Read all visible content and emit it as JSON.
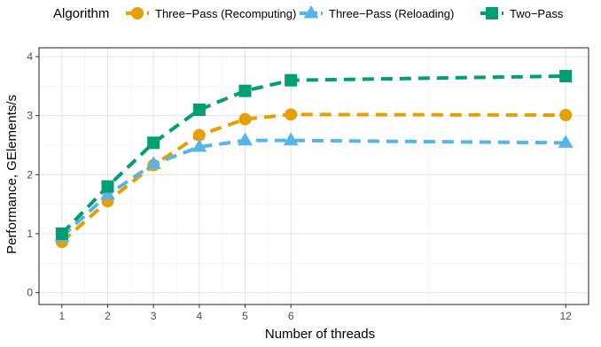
{
  "chart_data": {
    "type": "line",
    "xlabel": "Number of threads",
    "ylabel": "Performance, GElements/s",
    "legend_title": "Algorithm",
    "legend_position": "top",
    "grid": true,
    "x": [
      1,
      2,
      3,
      4,
      5,
      6,
      12
    ],
    "x_ticks": [
      "1",
      "2",
      "3",
      "4",
      "5",
      "6",
      "12"
    ],
    "y_ticks": [
      "0",
      "1",
      "2",
      "3",
      "4"
    ],
    "xlim": [
      0.5,
      12.5
    ],
    "ylim": [
      -0.2,
      4.15
    ],
    "series": [
      {
        "name": "Three−Pass (Recomputing)",
        "color": "#E69F00",
        "marker": "circle",
        "values": [
          0.86,
          1.55,
          2.16,
          2.67,
          2.94,
          3.02,
          3.01
        ]
      },
      {
        "name": "Three−Pass (Reloading)",
        "color": "#56B4E9",
        "marker": "triangle",
        "values": [
          0.95,
          1.66,
          2.18,
          2.47,
          2.58,
          2.58,
          2.54
        ]
      },
      {
        "name": "Two−Pass",
        "color": "#009E73",
        "marker": "square",
        "values": [
          1.0,
          1.8,
          2.54,
          3.1,
          3.42,
          3.6,
          3.67
        ]
      }
    ]
  }
}
